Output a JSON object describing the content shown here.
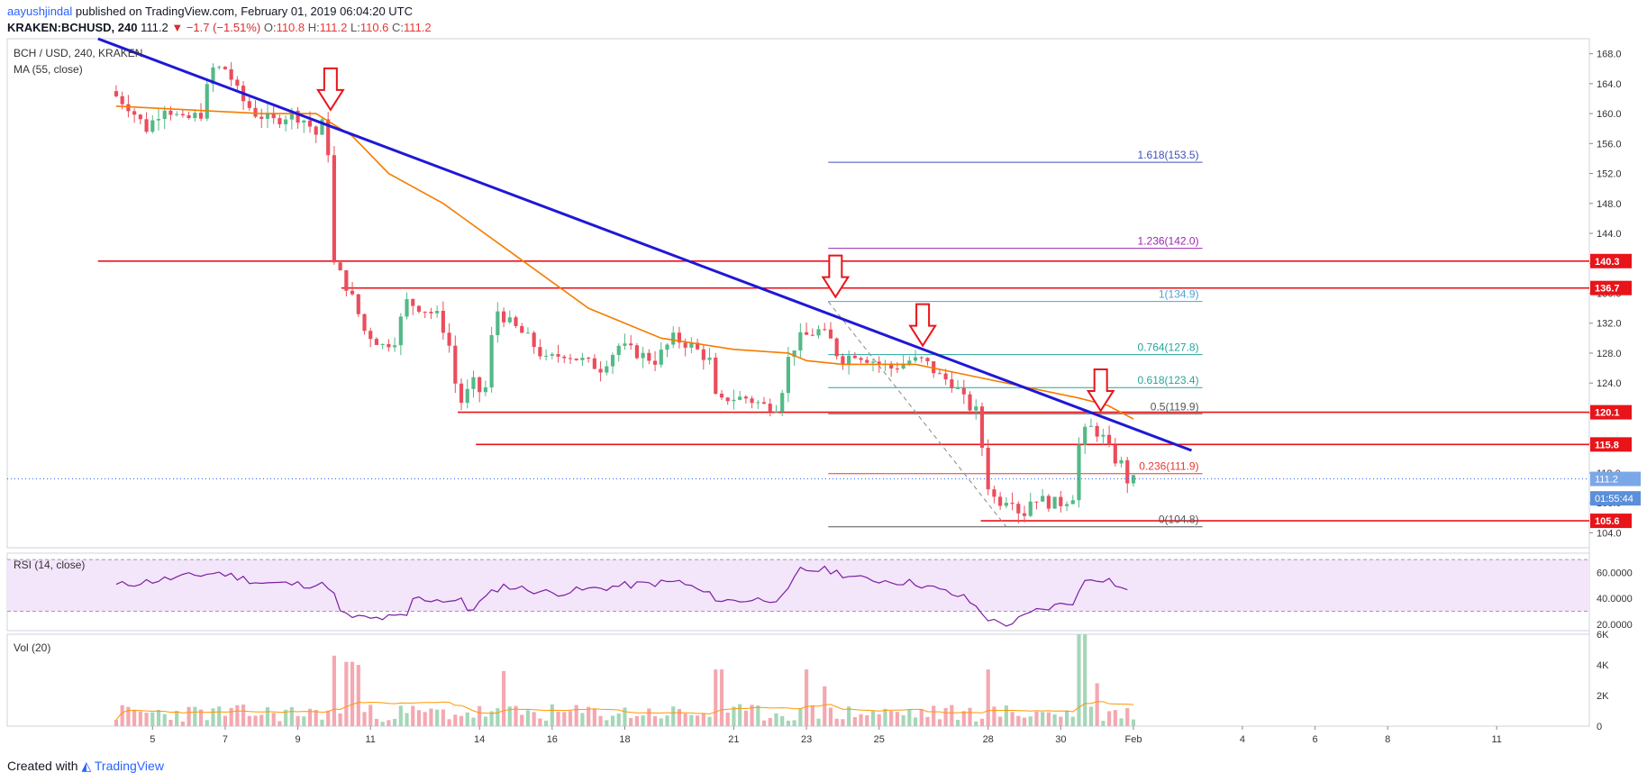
{
  "header": {
    "author": "aayushjindal",
    "published_text": "published on TradingView.com, February 01, 2019 06:04:20 UTC",
    "symbol_line": "KRAKEN:BCHUSD, 240",
    "last": "111.2",
    "change": "▼ −1.7 (−1.51%)",
    "open_label": "O:",
    "open": "110.8",
    "high_label": "H:",
    "high": "111.2",
    "low_label": "L:",
    "low": "110.6",
    "close_label": "C:",
    "close": "111.2"
  },
  "legend": {
    "main_title": "BCH / USD, 240, KRAKEN",
    "ma": "MA (55, close)",
    "rsi": "RSI (14, close)",
    "vol": "Vol (20)"
  },
  "footer": {
    "created_with": "Created with",
    "brand": "TradingView"
  },
  "colors": {
    "up": "#53b987",
    "down": "#eb4d5c",
    "ma": "#f57c00",
    "trend": "#1f18d6",
    "level": "#e8141a",
    "rsi": "#7b1fa2",
    "rsi_band": "#f3e5fa",
    "vol_up": "#a5d6b8",
    "vol_down": "#f4a8b0",
    "vol_ma": "#ff9800",
    "fib_red": "#e53935",
    "fib_blue": "#3f51b5"
  },
  "chart_data": {
    "type": "candlestick",
    "y_axis": {
      "ylim": [
        102,
        170
      ],
      "ticks": [
        "104.0",
        "108.0",
        "112.0",
        "116.0",
        "120.0",
        "124.0",
        "128.0",
        "132.0",
        "136.0",
        "140.0",
        "144.0",
        "148.0",
        "152.0",
        "156.0",
        "160.0",
        "164.0",
        "168.0"
      ]
    },
    "x_axis": {
      "ticks": [
        {
          "label": "5",
          "day": 5
        },
        {
          "label": "7",
          "day": 7
        },
        {
          "label": "9",
          "day": 9
        },
        {
          "label": "11",
          "day": 11
        },
        {
          "label": "14",
          "day": 14
        },
        {
          "label": "16",
          "day": 16
        },
        {
          "label": "18",
          "day": 18
        },
        {
          "label": "21",
          "day": 21
        },
        {
          "label": "23",
          "day": 23
        },
        {
          "label": "25",
          "day": 25
        },
        {
          "label": "28",
          "day": 28
        },
        {
          "label": "30",
          "day": 30
        },
        {
          "label": "Feb",
          "day": 32
        },
        {
          "label": "4",
          "day": 35
        },
        {
          "label": "6",
          "day": 37
        },
        {
          "label": "8",
          "day": 39
        },
        {
          "label": "11",
          "day": 42
        }
      ],
      "note": "day = January day number; Feb 1 = 32"
    },
    "keypoints": [
      {
        "day": 4.0,
        "p": 163
      },
      {
        "day": 4.5,
        "p": 161
      },
      {
        "day": 5.0,
        "p": 158
      },
      {
        "day": 5.5,
        "p": 161
      },
      {
        "day": 6.0,
        "p": 159
      },
      {
        "day": 6.5,
        "p": 160
      },
      {
        "day": 6.8,
        "p": 166
      },
      {
        "day": 7.2,
        "p": 166
      },
      {
        "day": 7.6,
        "p": 162
      },
      {
        "day": 8.0,
        "p": 160
      },
      {
        "day": 8.5,
        "p": 159
      },
      {
        "day": 9.0,
        "p": 160
      },
      {
        "day": 9.4,
        "p": 159
      },
      {
        "day": 9.7,
        "p": 157
      },
      {
        "day": 9.95,
        "p": 160
      },
      {
        "day": 10.15,
        "p": 140
      },
      {
        "day": 10.4,
        "p": 138
      },
      {
        "day": 10.7,
        "p": 135
      },
      {
        "day": 11.0,
        "p": 131
      },
      {
        "day": 11.5,
        "p": 129
      },
      {
        "day": 11.9,
        "p": 130
      },
      {
        "day": 12.1,
        "p": 135
      },
      {
        "day": 12.6,
        "p": 134
      },
      {
        "day": 13.0,
        "p": 133
      },
      {
        "day": 13.3,
        "p": 130
      },
      {
        "day": 13.6,
        "p": 121
      },
      {
        "day": 14.0,
        "p": 124
      },
      {
        "day": 14.3,
        "p": 122
      },
      {
        "day": 14.6,
        "p": 134
      },
      {
        "day": 15.0,
        "p": 132
      },
      {
        "day": 15.5,
        "p": 130
      },
      {
        "day": 16.0,
        "p": 127
      },
      {
        "day": 16.5,
        "p": 128
      },
      {
        "day": 17.0,
        "p": 127
      },
      {
        "day": 17.5,
        "p": 126
      },
      {
        "day": 18.0,
        "p": 129
      },
      {
        "day": 18.5,
        "p": 128
      },
      {
        "day": 19.0,
        "p": 127
      },
      {
        "day": 19.5,
        "p": 130
      },
      {
        "day": 20.0,
        "p": 129
      },
      {
        "day": 20.5,
        "p": 127
      },
      {
        "day": 20.7,
        "p": 121
      },
      {
        "day": 21.0,
        "p": 122
      },
      {
        "day": 21.5,
        "p": 122
      },
      {
        "day": 22.0,
        "p": 121
      },
      {
        "day": 22.4,
        "p": 121
      },
      {
        "day": 22.7,
        "p": 128
      },
      {
        "day": 23.0,
        "p": 130
      },
      {
        "day": 23.5,
        "p": 131
      },
      {
        "day": 23.8,
        "p": 130
      },
      {
        "day": 24.1,
        "p": 127
      },
      {
        "day": 24.5,
        "p": 128
      },
      {
        "day": 25.0,
        "p": 127
      },
      {
        "day": 25.5,
        "p": 126
      },
      {
        "day": 26.0,
        "p": 127
      },
      {
        "day": 26.4,
        "p": 127
      },
      {
        "day": 26.8,
        "p": 125
      },
      {
        "day": 27.2,
        "p": 124
      },
      {
        "day": 27.6,
        "p": 121
      },
      {
        "day": 27.9,
        "p": 120
      },
      {
        "day": 28.1,
        "p": 111
      },
      {
        "day": 28.4,
        "p": 108
      },
      {
        "day": 28.8,
        "p": 109
      },
      {
        "day": 29.1,
        "p": 106
      },
      {
        "day": 29.4,
        "p": 109
      },
      {
        "day": 29.8,
        "p": 108
      },
      {
        "day": 30.2,
        "p": 108
      },
      {
        "day": 30.5,
        "p": 109
      },
      {
        "day": 30.7,
        "p": 117
      },
      {
        "day": 31.0,
        "p": 118
      },
      {
        "day": 31.3,
        "p": 117
      },
      {
        "day": 31.6,
        "p": 114
      },
      {
        "day": 31.9,
        "p": 113
      },
      {
        "day": 32.0,
        "p": 111
      }
    ],
    "ma55": [
      {
        "day": 4,
        "p": 161
      },
      {
        "day": 6,
        "p": 160.5
      },
      {
        "day": 8,
        "p": 160
      },
      {
        "day": 9.5,
        "p": 160
      },
      {
        "day": 10.5,
        "p": 157
      },
      {
        "day": 11.5,
        "p": 152
      },
      {
        "day": 13,
        "p": 148
      },
      {
        "day": 15,
        "p": 141
      },
      {
        "day": 17,
        "p": 134
      },
      {
        "day": 19,
        "p": 130
      },
      {
        "day": 21,
        "p": 128.5
      },
      {
        "day": 22.5,
        "p": 128
      },
      {
        "day": 23,
        "p": 127
      },
      {
        "day": 24,
        "p": 126.5
      },
      {
        "day": 26,
        "p": 126.5
      },
      {
        "day": 27.5,
        "p": 125
      },
      {
        "day": 29,
        "p": 123.5
      },
      {
        "day": 30.5,
        "p": 122
      },
      {
        "day": 31.3,
        "p": 121
      },
      {
        "day": 32,
        "p": 119.2
      }
    ],
    "trendline": {
      "from": {
        "day": 3.5,
        "p": 170
      },
      "to": {
        "day": 33.6,
        "p": 115
      }
    },
    "horizontal_levels": [
      {
        "price": 140.3,
        "label": "140.3",
        "from_day": 3.5
      },
      {
        "price": 136.7,
        "label": "136.7",
        "from_day": 10.2
      },
      {
        "price": 120.1,
        "label": "120.1",
        "from_day": 13.4
      },
      {
        "price": 115.8,
        "label": "115.8",
        "from_day": 13.9
      },
      {
        "price": 105.6,
        "label": "105.6",
        "from_day": 27.8
      }
    ],
    "fibonacci": [
      {
        "ratio": "1.618",
        "price": 153.5,
        "label": "1.618(153.5)"
      },
      {
        "ratio": "1.236",
        "price": 142.0,
        "label": "1.236(142.0)"
      },
      {
        "ratio": "1",
        "price": 134.9,
        "label": "1(134.9)"
      },
      {
        "ratio": "0.764",
        "price": 127.8,
        "label": "0.764(127.8)"
      },
      {
        "ratio": "0.618",
        "price": 123.4,
        "label": "0.618(123.4)"
      },
      {
        "ratio": "0.5",
        "price": 119.9,
        "label": "0.5(119.9)"
      },
      {
        "ratio": "0.236",
        "price": 111.9,
        "label": "0.236(111.9)"
      },
      {
        "ratio": "0",
        "price": 104.8,
        "label": "0(104.8)"
      }
    ],
    "fib_from_day": 23.6,
    "fib_to_day": 33.9,
    "swing_line": {
      "from": {
        "day": 23.6,
        "p": 134.9
      },
      "to": {
        "day": 28.5,
        "p": 104.8
      }
    },
    "resistance_arrows": [
      {
        "day": 9.9,
        "p": 160.5
      },
      {
        "day": 23.8,
        "p": 135.5
      },
      {
        "day": 26.2,
        "p": 129
      },
      {
        "day": 31.1,
        "p": 120.3
      }
    ],
    "price_labels": [
      {
        "label": "111.2",
        "price": 111.2
      },
      {
        "label": "01:55:44",
        "price": 108.6
      }
    ],
    "rsi": {
      "ylim": [
        15,
        75
      ],
      "ticks": [
        "20.0000",
        "40.0000",
        "60.0000"
      ],
      "band": [
        30,
        70
      ],
      "points": [
        {
          "day": 4,
          "p": 50
        },
        {
          "day": 6.8,
          "p": 60
        },
        {
          "day": 8,
          "p": 52
        },
        {
          "day": 9.9,
          "p": 50
        },
        {
          "day": 10.2,
          "p": 27
        },
        {
          "day": 11,
          "p": 24
        },
        {
          "day": 12,
          "p": 26
        },
        {
          "day": 12.1,
          "p": 40
        },
        {
          "day": 13.5,
          "p": 38
        },
        {
          "day": 13.7,
          "p": 30
        },
        {
          "day": 14.6,
          "p": 50
        },
        {
          "day": 16,
          "p": 44
        },
        {
          "day": 18,
          "p": 50
        },
        {
          "day": 19.5,
          "p": 53
        },
        {
          "day": 20.7,
          "p": 38
        },
        {
          "day": 22.4,
          "p": 40
        },
        {
          "day": 22.8,
          "p": 62
        },
        {
          "day": 23.6,
          "p": 62
        },
        {
          "day": 24.5,
          "p": 55
        },
        {
          "day": 26,
          "p": 52
        },
        {
          "day": 27.4,
          "p": 40
        },
        {
          "day": 28.1,
          "p": 22
        },
        {
          "day": 28.6,
          "p": 20
        },
        {
          "day": 29.3,
          "p": 30
        },
        {
          "day": 30.4,
          "p": 38
        },
        {
          "day": 30.7,
          "p": 56
        },
        {
          "day": 31.3,
          "p": 55
        },
        {
          "day": 32,
          "p": 42
        }
      ]
    },
    "volume": {
      "ylim": [
        0,
        6000
      ],
      "ticks": [
        "0",
        "2K",
        "4K",
        "6K"
      ],
      "spikes": [
        {
          "day": 10.0,
          "v": 4600
        },
        {
          "day": 10.4,
          "v": 4200
        },
        {
          "day": 10.6,
          "v": 4000
        },
        {
          "day": 14.6,
          "v": 3600
        },
        {
          "day": 20.6,
          "v": 3700
        },
        {
          "day": 23.0,
          "v": 3700
        },
        {
          "day": 23.5,
          "v": 2600
        },
        {
          "day": 28.0,
          "v": 3700
        },
        {
          "day": 30.6,
          "v": 6000
        },
        {
          "day": 31.0,
          "v": 2800
        }
      ],
      "baseline": 900
    }
  }
}
